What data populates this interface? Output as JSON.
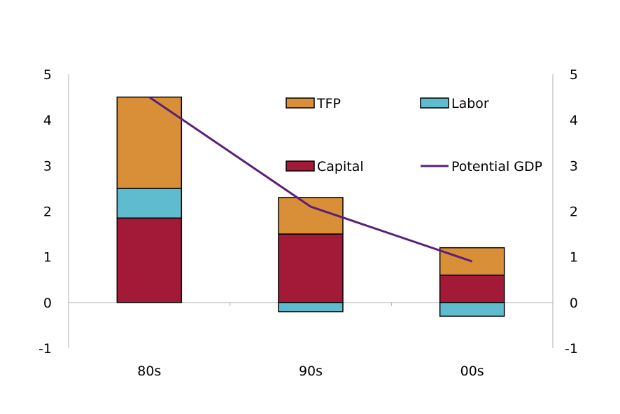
{
  "chart_data": {
    "type": "bar",
    "stacked": true,
    "categories": [
      "80s",
      "90s",
      "00s"
    ],
    "series": [
      {
        "name": "Capital",
        "kind": "bar",
        "color": "#a31a38",
        "values": [
          1.85,
          1.5,
          0.6
        ]
      },
      {
        "name": "Labor",
        "kind": "bar",
        "color": "#5fbccf",
        "values": [
          0.65,
          -0.2,
          -0.3
        ]
      },
      {
        "name": "TFP",
        "kind": "bar",
        "color": "#d98f37",
        "values": [
          2.0,
          0.8,
          0.6
        ]
      },
      {
        "name": "Potential GDP",
        "kind": "line",
        "color": "#5b1f7a",
        "values": [
          4.5,
          2.1,
          0.9
        ]
      }
    ],
    "ylim": [
      -1,
      5
    ],
    "yticks": [
      "-1",
      "0",
      "1",
      "2",
      "3",
      "4",
      "5"
    ],
    "right_yticks": [
      "-1",
      "0",
      "1",
      "2",
      "3",
      "4",
      "5"
    ],
    "xlabel": "",
    "ylabel": "",
    "grid": false,
    "legend": {
      "placement": "top-right",
      "items": [
        {
          "label": "TFP",
          "kind": "bar",
          "color": "#d98f37"
        },
        {
          "label": "Labor",
          "kind": "bar",
          "color": "#5fbccf"
        },
        {
          "label": "Capital",
          "kind": "bar",
          "color": "#a31a38"
        },
        {
          "label": "Potential GDP",
          "kind": "line",
          "color": "#5b1f7a"
        }
      ]
    }
  }
}
